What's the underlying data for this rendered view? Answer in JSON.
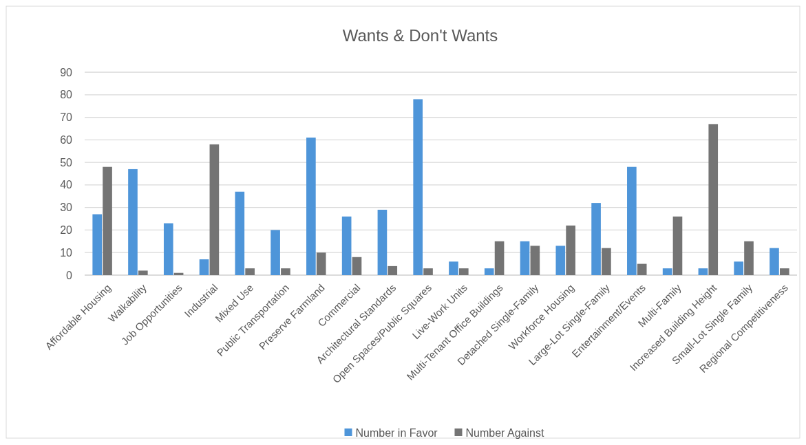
{
  "chart_data": {
    "type": "bar",
    "title": "Wants & Don't Wants",
    "categories": [
      "Affordable Housing",
      "Walkability",
      "Job Opportunities",
      "Industrial",
      "Mixed Use",
      "Public Transportation",
      "Preserve Farmland",
      "Commercial",
      "Architectural Standards",
      "Open Spaces/Public Squares",
      "Live-Work Units",
      "Multi-Tenant Office Buildings",
      "Detached Single-Family",
      "Workforce Housing",
      "Large-Lot Single-Family",
      "Entertainment/Events",
      "Multi-Family",
      "Increased Building Height",
      "Small-Lot Single Family",
      "Regional Competitiveness"
    ],
    "series": [
      {
        "name": "Number in Favor",
        "color": "#4e95d9",
        "values": [
          27,
          47,
          23,
          7,
          37,
          20,
          61,
          26,
          29,
          78,
          6,
          3,
          15,
          13,
          32,
          48,
          3,
          3,
          6,
          12
        ]
      },
      {
        "name": "Number Against",
        "color": "#747474",
        "values": [
          48,
          2,
          1,
          58,
          3,
          3,
          10,
          8,
          4,
          3,
          3,
          15,
          13,
          22,
          12,
          5,
          26,
          67,
          15,
          3
        ]
      }
    ],
    "ylim": [
      0,
      90
    ],
    "yticks": [
      0,
      10,
      20,
      30,
      40,
      50,
      60,
      70,
      80,
      90
    ],
    "grid": "y",
    "legend": "bottom"
  }
}
